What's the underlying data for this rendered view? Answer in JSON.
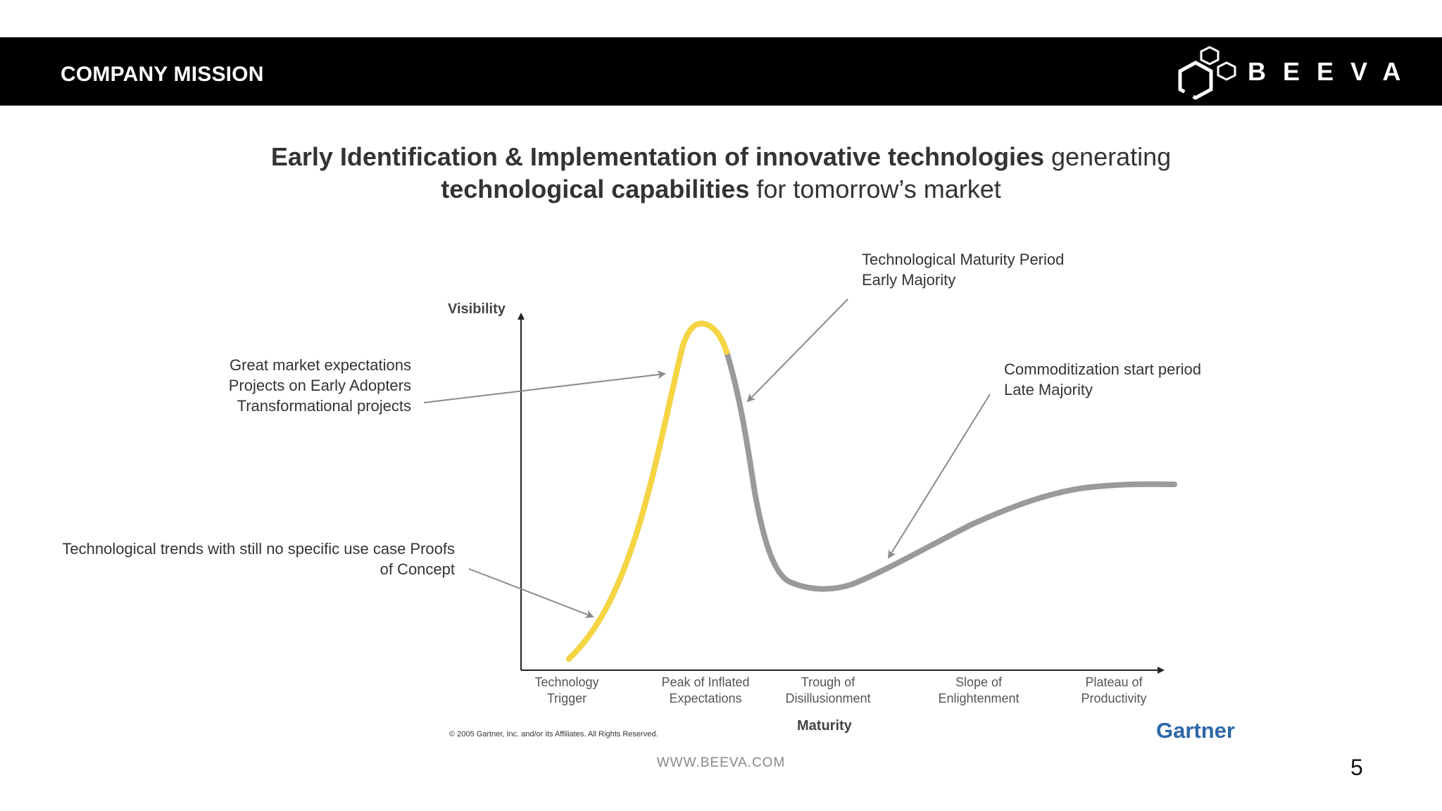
{
  "header": {
    "title": "COMPANY MISSION",
    "logo_text": "BEEVA"
  },
  "headline": {
    "bold_1": "Early Identification & Implementation of innovative technologies",
    "normal_1": " generating",
    "bold_2": "technological capabilities",
    "normal_2": " for tomorrow’s market"
  },
  "annotations": {
    "maturity_line1": "Technological Maturity Period",
    "maturity_line2": "Early Majority",
    "expectations_line1": "Great market expectations",
    "expectations_line2": "Projects on Early Adopters",
    "expectations_line3": "Transformational projects",
    "commoditization_line1": "Commoditization start period",
    "commoditization_line2": "Late Majority",
    "trends_line1": "Technological trends with still no specific use case Proofs",
    "trends_line2": "of Concept"
  },
  "chart": {
    "y_axis_title": "Visibility",
    "x_axis_title": "Maturity",
    "phases": [
      {
        "line1": "Technology",
        "line2": "Trigger"
      },
      {
        "line1": "Peak of Inflated",
        "line2": "Expectations"
      },
      {
        "line1": "Trough of",
        "line2": "Disillusionment"
      },
      {
        "line1": "Slope of",
        "line2": "Enlightenment"
      },
      {
        "line1": "Plateau of",
        "line2": "Productivity"
      }
    ],
    "copyright": "© 2005 Gartner, Inc. and/or its Affiliates. All Rights Reserved.",
    "source_brand": "Gartner",
    "colors": {
      "curve": "#9a9a9a",
      "highlight": "#f5d542",
      "arrow": "#8a8a8a"
    }
  },
  "footer": {
    "url": "WWW.BEEVA.COM",
    "page_number": "5"
  }
}
